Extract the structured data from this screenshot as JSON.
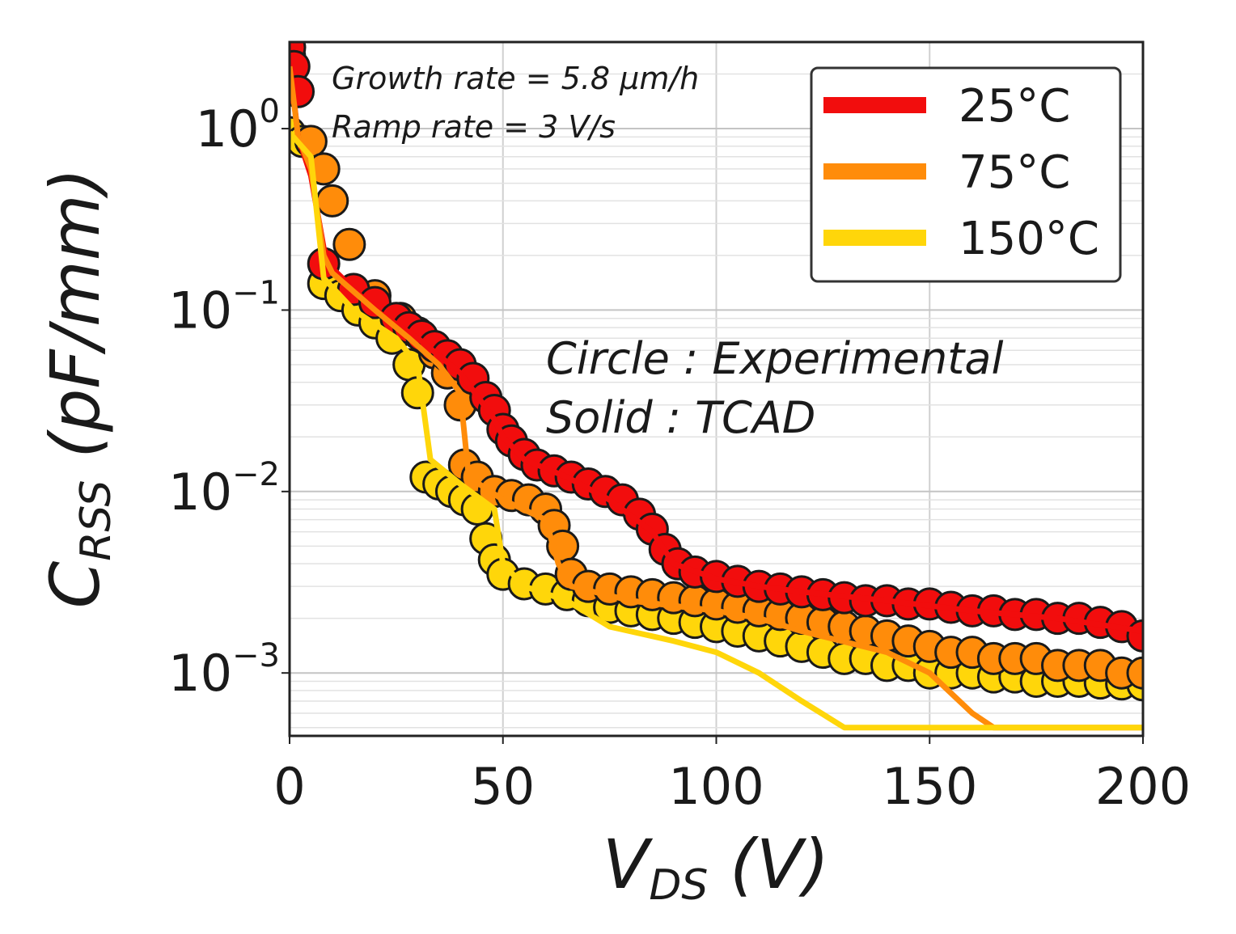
{
  "chart_data": {
    "type": "line",
    "xlabel": {
      "main": "V",
      "sub": "DS",
      "unit": " (V)"
    },
    "ylabel": {
      "main": "C",
      "sub": "RSS",
      "unit": " (pF/mm)"
    },
    "xlim": [
      0,
      200
    ],
    "ylim": [
      0.00045,
      3
    ],
    "yscale": "log",
    "xticks": [
      0,
      50,
      100,
      150,
      200
    ],
    "yticks": [
      {
        "value": 1,
        "base": "10",
        "exp": "0"
      },
      {
        "value": 0.1,
        "base": "10",
        "exp": "−1"
      },
      {
        "value": 0.01,
        "base": "10",
        "exp": "−2"
      },
      {
        "value": 0.001,
        "base": "10",
        "exp": "−3"
      }
    ],
    "grid": true,
    "legend_position": "top-right",
    "annotations": {
      "growth_rate": "Growth rate  =  5.8 µm/h",
      "ramp_rate": "Ramp rate  =  3 V/s",
      "circle_note": "Circle  :  Experimental",
      "solid_note": "Solid  :  TCAD"
    },
    "series": [
      {
        "name": "25°C",
        "color": "#f20d0d",
        "tcad": [
          [
            0,
            2.3
          ],
          [
            2,
            0.9
          ],
          [
            5,
            0.55
          ],
          [
            8,
            0.22
          ],
          [
            10,
            0.17
          ],
          [
            20,
            0.1
          ],
          [
            30,
            0.07
          ],
          [
            40,
            0.045
          ],
          [
            48,
            0.025
          ],
          [
            50,
            0.02
          ],
          [
            55,
            0.015
          ],
          [
            65,
            0.012
          ],
          [
            75,
            0.009
          ],
          [
            85,
            0.006
          ],
          [
            90,
            0.004
          ],
          [
            100,
            0.0033
          ],
          [
            110,
            0.003
          ],
          [
            120,
            0.0028
          ],
          [
            140,
            0.0025
          ],
          [
            160,
            0.0022
          ],
          [
            180,
            0.002
          ],
          [
            200,
            0.0017
          ]
        ],
        "experimental": [
          [
            0,
            2.8
          ],
          [
            1,
            2.2
          ],
          [
            2,
            1.6
          ],
          [
            8,
            0.18
          ],
          [
            15,
            0.13
          ],
          [
            20,
            0.11
          ],
          [
            25,
            0.09
          ],
          [
            28,
            0.08
          ],
          [
            31,
            0.072
          ],
          [
            34,
            0.063
          ],
          [
            37,
            0.056
          ],
          [
            40,
            0.05
          ],
          [
            43,
            0.042
          ],
          [
            46,
            0.033
          ],
          [
            48,
            0.028
          ],
          [
            50,
            0.022
          ],
          [
            52,
            0.019
          ],
          [
            55,
            0.016
          ],
          [
            58,
            0.014
          ],
          [
            62,
            0.013
          ],
          [
            66,
            0.012
          ],
          [
            70,
            0.011
          ],
          [
            74,
            0.01
          ],
          [
            78,
            0.009
          ],
          [
            82,
            0.0075
          ],
          [
            85,
            0.0062
          ],
          [
            88,
            0.0048
          ],
          [
            91,
            0.004
          ],
          [
            95,
            0.0036
          ],
          [
            100,
            0.0034
          ],
          [
            105,
            0.0032
          ],
          [
            110,
            0.003
          ],
          [
            115,
            0.0029
          ],
          [
            120,
            0.0028
          ],
          [
            125,
            0.0027
          ],
          [
            130,
            0.0026
          ],
          [
            135,
            0.0025
          ],
          [
            140,
            0.0025
          ],
          [
            145,
            0.0024
          ],
          [
            150,
            0.0024
          ],
          [
            155,
            0.0023
          ],
          [
            160,
            0.0022
          ],
          [
            165,
            0.0022
          ],
          [
            170,
            0.0021
          ],
          [
            175,
            0.0021
          ],
          [
            180,
            0.002
          ],
          [
            185,
            0.002
          ],
          [
            190,
            0.0019
          ],
          [
            195,
            0.0018
          ],
          [
            200,
            0.0016
          ]
        ]
      },
      {
        "name": "75°C",
        "color": "#ff8c0a",
        "tcad": [
          [
            0,
            2.2
          ],
          [
            2,
            0.9
          ],
          [
            5,
            0.6
          ],
          [
            8,
            0.2
          ],
          [
            10,
            0.16
          ],
          [
            20,
            0.1
          ],
          [
            28,
            0.07
          ],
          [
            35,
            0.05
          ],
          [
            40,
            0.035
          ],
          [
            42,
            0.012
          ],
          [
            50,
            0.009
          ],
          [
            60,
            0.007
          ],
          [
            63,
            0.004
          ],
          [
            66,
            0.003
          ],
          [
            80,
            0.0025
          ],
          [
            100,
            0.0022
          ],
          [
            110,
            0.002
          ],
          [
            120,
            0.0017
          ],
          [
            140,
            0.0013
          ],
          [
            150,
            0.001
          ],
          [
            160,
            0.0006
          ],
          [
            165,
            0.0005
          ],
          [
            200,
            0.0005
          ]
        ],
        "experimental": [
          [
            0,
            2.5
          ],
          [
            5,
            0.85
          ],
          [
            8,
            0.6
          ],
          [
            10,
            0.4
          ],
          [
            14,
            0.23
          ],
          [
            20,
            0.12
          ],
          [
            26,
            0.09
          ],
          [
            30,
            0.075
          ],
          [
            34,
            0.058
          ],
          [
            37,
            0.045
          ],
          [
            40,
            0.03
          ],
          [
            41,
            0.014
          ],
          [
            44,
            0.012
          ],
          [
            48,
            0.01
          ],
          [
            52,
            0.0095
          ],
          [
            56,
            0.009
          ],
          [
            60,
            0.008
          ],
          [
            62,
            0.0065
          ],
          [
            64,
            0.005
          ],
          [
            66,
            0.0035
          ],
          [
            70,
            0.003
          ],
          [
            75,
            0.0029
          ],
          [
            80,
            0.0028
          ],
          [
            85,
            0.0027
          ],
          [
            90,
            0.0026
          ],
          [
            95,
            0.0025
          ],
          [
            100,
            0.0024
          ],
          [
            105,
            0.0023
          ],
          [
            110,
            0.0022
          ],
          [
            115,
            0.0021
          ],
          [
            120,
            0.002
          ],
          [
            125,
            0.0019
          ],
          [
            130,
            0.0018
          ],
          [
            135,
            0.0017
          ],
          [
            140,
            0.0016
          ],
          [
            145,
            0.0015
          ],
          [
            150,
            0.0014
          ],
          [
            155,
            0.0013
          ],
          [
            160,
            0.0013
          ],
          [
            165,
            0.0012
          ],
          [
            170,
            0.0012
          ],
          [
            175,
            0.0012
          ],
          [
            180,
            0.0011
          ],
          [
            185,
            0.0011
          ],
          [
            190,
            0.0011
          ],
          [
            195,
            0.001
          ],
          [
            200,
            0.001
          ]
        ]
      },
      {
        "name": "150°C",
        "color": "#ffd60a",
        "tcad": [
          [
            0,
            0.95
          ],
          [
            5,
            0.7
          ],
          [
            8,
            0.15
          ],
          [
            15,
            0.1
          ],
          [
            25,
            0.07
          ],
          [
            30,
            0.05
          ],
          [
            33,
            0.015
          ],
          [
            40,
            0.011
          ],
          [
            48,
            0.008
          ],
          [
            50,
            0.004
          ],
          [
            55,
            0.003
          ],
          [
            65,
            0.0025
          ],
          [
            75,
            0.0018
          ],
          [
            90,
            0.0015
          ],
          [
            100,
            0.0013
          ],
          [
            110,
            0.001
          ],
          [
            120,
            0.0007
          ],
          [
            130,
            0.0005
          ],
          [
            200,
            0.0005
          ]
        ],
        "experimental": [
          [
            0,
            0.95
          ],
          [
            3,
            0.85
          ],
          [
            8,
            0.14
          ],
          [
            12,
            0.12
          ],
          [
            16,
            0.1
          ],
          [
            20,
            0.085
          ],
          [
            24,
            0.07
          ],
          [
            28,
            0.05
          ],
          [
            30,
            0.035
          ],
          [
            32,
            0.012
          ],
          [
            35,
            0.011
          ],
          [
            38,
            0.01
          ],
          [
            41,
            0.009
          ],
          [
            44,
            0.008
          ],
          [
            46,
            0.0055
          ],
          [
            48,
            0.0042
          ],
          [
            50,
            0.0035
          ],
          [
            55,
            0.0031
          ],
          [
            60,
            0.0029
          ],
          [
            65,
            0.0027
          ],
          [
            70,
            0.0025
          ],
          [
            75,
            0.0023
          ],
          [
            80,
            0.0022
          ],
          [
            85,
            0.0021
          ],
          [
            90,
            0.002
          ],
          [
            95,
            0.0019
          ],
          [
            100,
            0.0018
          ],
          [
            105,
            0.0017
          ],
          [
            110,
            0.0016
          ],
          [
            115,
            0.0015
          ],
          [
            120,
            0.0014
          ],
          [
            125,
            0.0013
          ],
          [
            130,
            0.0012
          ],
          [
            135,
            0.0012
          ],
          [
            140,
            0.0011
          ],
          [
            145,
            0.0011
          ],
          [
            150,
            0.001
          ],
          [
            155,
            0.001
          ],
          [
            160,
            0.001
          ],
          [
            165,
            0.00095
          ],
          [
            170,
            0.00095
          ],
          [
            175,
            0.0009
          ],
          [
            180,
            0.0009
          ],
          [
            185,
            0.0009
          ],
          [
            190,
            0.00088
          ],
          [
            195,
            0.00087
          ],
          [
            200,
            0.00086
          ]
        ]
      }
    ]
  }
}
